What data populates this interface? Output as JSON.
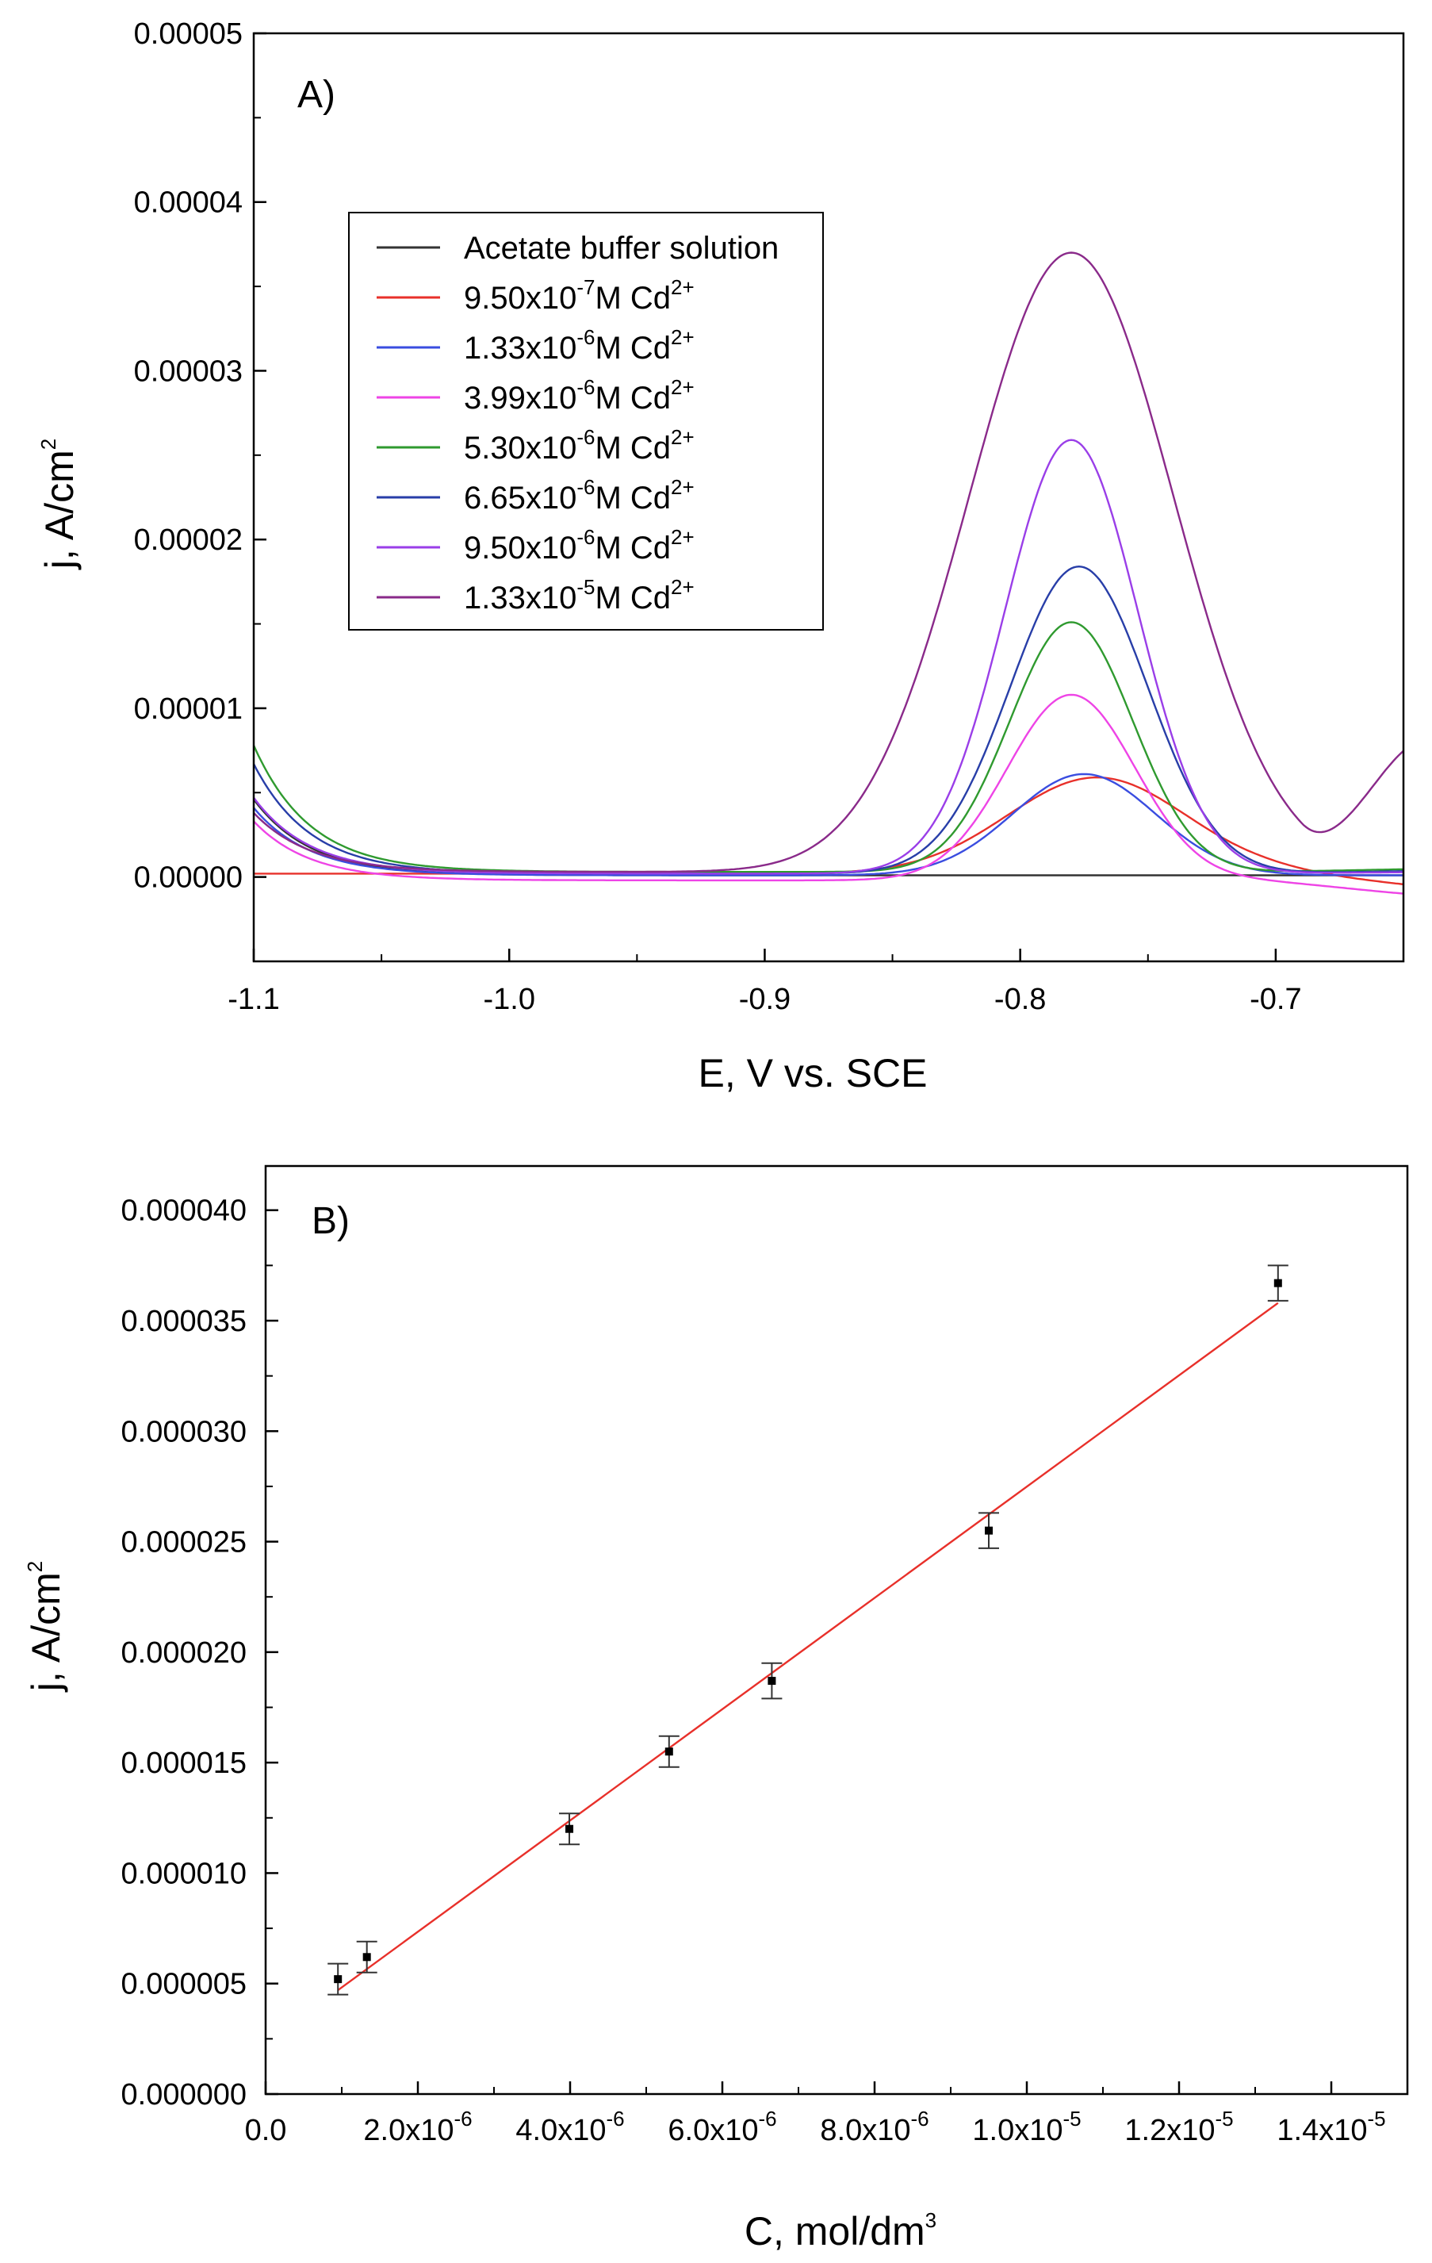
{
  "chart_data": [
    {
      "panel": "A)",
      "type": "line",
      "xlabel": "E, V vs. SCE",
      "ylabel": "j, A/cm",
      "ylabel_sup": "2",
      "xlim": [
        -1.1,
        -0.65
      ],
      "ylim": [
        -5e-06,
        5e-05
      ],
      "x_ticks": [
        -1.1,
        -1.0,
        -0.9,
        -0.8,
        -0.7
      ],
      "x_tick_labels": [
        "-1.1",
        "-1.0",
        "-0.9",
        "-0.8",
        "-0.7"
      ],
      "y_ticks": [
        0,
        1e-05,
        2e-05,
        3e-05,
        4e-05,
        5e-05
      ],
      "y_tick_labels": [
        "0.00000",
        "0.00001",
        "0.00002",
        "0.00003",
        "0.00004",
        "0.00005"
      ],
      "legend_position": "upper-left",
      "series": [
        {
          "name": "Acetate buffer solution",
          "label_prefix": "Acetate buffer solution",
          "label_exp": "",
          "label_suffix": "",
          "color": "#333333",
          "baseline": 1e-07,
          "start_spike": 4.5e-06,
          "peak": 0.0,
          "center": -0.78,
          "width": 0.03,
          "onset": -0.9,
          "tail_end": 1e-07
        },
        {
          "name": "9.50x10-7M Cd2+",
          "label_prefix": "9.50x10",
          "label_exp": "-7",
          "label_suffix": "M Cd",
          "label_ion": "2+",
          "color": "#e8302a",
          "baseline": 2e-07,
          "start_spike": 0.0,
          "peak": 5.7e-06,
          "center": -0.77,
          "width": 0.035,
          "onset": -0.84,
          "tail_end": -8e-07
        },
        {
          "name": "1.33x10-6M Cd2+",
          "label_prefix": "1.33x10",
          "label_exp": "-6",
          "label_suffix": "M Cd",
          "label_ion": "2+",
          "color": "#3a4de0",
          "baseline": 1e-07,
          "start_spike": 4e-06,
          "peak": 6e-06,
          "center": -0.775,
          "width": 0.028,
          "onset": -0.84,
          "tail_end": 1e-07
        },
        {
          "name": "3.99x10-6M Cd2+",
          "label_prefix": "3.99x10",
          "label_exp": "-6",
          "label_suffix": "M Cd",
          "label_ion": "2+",
          "color": "#ee44e6",
          "baseline": -2e-07,
          "start_spike": 3.5e-06,
          "peak": 1.1e-05,
          "center": -0.78,
          "width": 0.025,
          "onset": -0.85,
          "tail_end": -1.2e-06
        },
        {
          "name": "5.30x10-6M Cd2+",
          "label_prefix": "5.30x10",
          "label_exp": "-6",
          "label_suffix": "M Cd",
          "label_ion": "2+",
          "color": "#2f9a2f",
          "baseline": 3e-07,
          "start_spike": 7.5e-06,
          "peak": 1.48e-05,
          "center": -0.78,
          "width": 0.024,
          "onset": -0.835,
          "tail_end": 5e-07
        },
        {
          "name": "6.65x10-6M Cd2+",
          "label_prefix": "6.65x10",
          "label_exp": "-6",
          "label_suffix": "M Cd",
          "label_ion": "2+",
          "color": "#283ea8",
          "baseline": 2e-07,
          "start_spike": 6.5e-06,
          "peak": 1.82e-05,
          "center": -0.777,
          "width": 0.027,
          "onset": -0.835,
          "tail_end": 4e-07
        },
        {
          "name": "9.50x10-6M Cd2+",
          "label_prefix": "9.50x10",
          "label_exp": "-6",
          "label_suffix": "M Cd",
          "label_ion": "2+",
          "color": "#9a3ee8",
          "baseline": 2e-07,
          "start_spike": 4.5e-06,
          "peak": 2.57e-05,
          "center": -0.78,
          "width": 0.026,
          "onset": -0.85,
          "tail_end": 3e-07
        },
        {
          "name": "1.33x10-5M Cd2+",
          "label_prefix": "1.33x10",
          "label_exp": "-5",
          "label_suffix": "M Cd",
          "label_ion": "2+",
          "color": "#8a2a8a",
          "baseline": 3e-07,
          "start_spike": 3.5e-06,
          "peak": 3.67e-05,
          "center": -0.78,
          "width": 0.04,
          "onset": -0.9,
          "tail_end": 7.8e-06
        }
      ]
    },
    {
      "panel": "B)",
      "type": "scatter",
      "xlabel": "C, mol/dm",
      "xlabel_sup": "3",
      "ylabel": "j, A/cm",
      "ylabel_sup": "2",
      "xlim": [
        0,
        1.5e-05
      ],
      "ylim": [
        0,
        4.2e-05
      ],
      "x_ticks": [
        0,
        2e-06,
        4e-06,
        6e-06,
        8e-06,
        1e-05,
        1.2e-05,
        1.4e-05
      ],
      "x_tick_labels": [
        {
          "base": "0.0",
          "exp": ""
        },
        {
          "base": "2.0x10",
          "exp": "-6"
        },
        {
          "base": "4.0x10",
          "exp": "-6"
        },
        {
          "base": "6.0x10",
          "exp": "-6"
        },
        {
          "base": "8.0x10",
          "exp": "-6"
        },
        {
          "base": "1.0x10",
          "exp": "-5"
        },
        {
          "base": "1.2x10",
          "exp": "-5"
        },
        {
          "base": "1.4x10",
          "exp": "-5"
        }
      ],
      "y_ticks": [
        0,
        5e-06,
        1e-05,
        1.5e-05,
        2e-05,
        2.5e-05,
        3e-05,
        3.5e-05,
        4e-05
      ],
      "y_tick_labels": [
        "0.000000",
        "0.000005",
        "0.000010",
        "0.000015",
        "0.000020",
        "0.000025",
        "0.000030",
        "0.000035",
        "0.000040"
      ],
      "points": [
        {
          "x": 9.5e-07,
          "y": 5.2e-06,
          "err": 7e-07
        },
        {
          "x": 1.33e-06,
          "y": 6.2e-06,
          "err": 7e-07
        },
        {
          "x": 3.99e-06,
          "y": 1.2e-05,
          "err": 7e-07
        },
        {
          "x": 5.3e-06,
          "y": 1.55e-05,
          "err": 7e-07
        },
        {
          "x": 6.65e-06,
          "y": 1.87e-05,
          "err": 8e-07
        },
        {
          "x": 9.5e-06,
          "y": 2.55e-05,
          "err": 8e-07
        },
        {
          "x": 1.33e-05,
          "y": 3.67e-05,
          "err": 8e-07
        }
      ],
      "fit": {
        "x_start": 9.5e-07,
        "y_start": 4.7e-06,
        "x_end": 1.33e-05,
        "y_end": 3.58e-05,
        "color": "#e8302a"
      }
    }
  ]
}
